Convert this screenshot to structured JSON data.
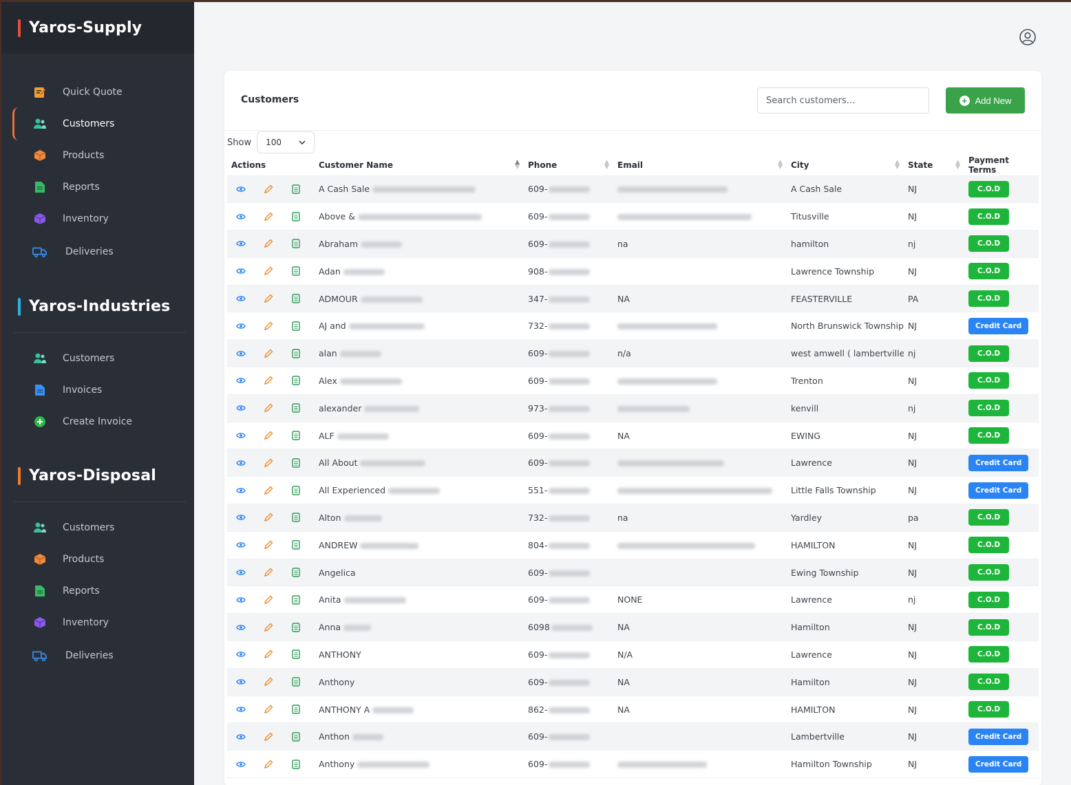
{
  "sidebar": {
    "sections": [
      {
        "title": "Yaros-Supply",
        "accent": "#e94e3d",
        "items": [
          {
            "label": "Quick Quote",
            "icon": "quick-quote-icon",
            "active": false
          },
          {
            "label": "Customers",
            "icon": "customers-icon",
            "active": true
          },
          {
            "label": "Products",
            "icon": "products-icon",
            "active": false
          },
          {
            "label": "Reports",
            "icon": "reports-icon",
            "active": false
          },
          {
            "label": "Inventory",
            "icon": "inventory-icon",
            "active": false
          },
          {
            "label": "Deliveries",
            "icon": "deliveries-icon",
            "active": false
          }
        ]
      },
      {
        "title": "Yaros-Industries",
        "accent": "#2bb3e0",
        "items": [
          {
            "label": "Customers",
            "icon": "customers-icon",
            "active": false
          },
          {
            "label": "Invoices",
            "icon": "invoices-icon",
            "active": false
          },
          {
            "label": "Create Invoice",
            "icon": "create-invoice-icon",
            "active": false
          }
        ]
      },
      {
        "title": "Yaros-Disposal",
        "accent": "#f07a2e",
        "items": [
          {
            "label": "Customers",
            "icon": "customers-icon",
            "active": false
          },
          {
            "label": "Products",
            "icon": "products-icon",
            "active": false
          },
          {
            "label": "Reports",
            "icon": "reports-icon",
            "active": false
          },
          {
            "label": "Inventory",
            "icon": "inventory-icon",
            "active": false
          },
          {
            "label": "Deliveries",
            "icon": "deliveries-icon",
            "active": false
          }
        ]
      }
    ]
  },
  "header": {
    "user_icon": "user-circle-icon"
  },
  "customers": {
    "title": "Customers",
    "search_placeholder": "Search customers...",
    "add_label": "Add New",
    "show_label": "Show",
    "show_value": "100",
    "columns": [
      "Actions",
      "Customer Name",
      "Phone",
      "Email",
      "City",
      "State",
      "Payment Terms"
    ],
    "rows": [
      {
        "name": "A Cash Sale",
        "phone": "609-",
        "email": "",
        "city": "A Cash Sale",
        "state": "NJ",
        "terms": "C.O.D"
      },
      {
        "name": "Above &",
        "phone": "609-",
        "email": "",
        "city": "Titusville",
        "state": "NJ",
        "terms": "C.O.D"
      },
      {
        "name": "Abraham",
        "phone": "609-",
        "email": "na",
        "city": "hamilton",
        "state": "nj",
        "terms": "C.O.D"
      },
      {
        "name": "Adan",
        "phone": "908-",
        "email": "",
        "city": "Lawrence Township",
        "state": "NJ",
        "terms": "C.O.D"
      },
      {
        "name": "ADMOUR",
        "phone": "347-",
        "email": "NA",
        "city": "FEASTERVILLE",
        "state": "PA",
        "terms": "C.O.D"
      },
      {
        "name": "AJ and",
        "phone": "732-",
        "email": "",
        "city": "North Brunswick Township",
        "state": "NJ",
        "terms": "Credit Card"
      },
      {
        "name": "alan",
        "phone": "609-",
        "email": "n/a",
        "city": "west amwell ( lambertville)",
        "state": "nj",
        "terms": "C.O.D"
      },
      {
        "name": "Alex",
        "phone": "609-",
        "email": "",
        "city": "Trenton",
        "state": "NJ",
        "terms": "C.O.D"
      },
      {
        "name": "alexander",
        "phone": "973-",
        "email": "",
        "city": "kenvill",
        "state": "nj",
        "terms": "C.O.D"
      },
      {
        "name": "ALF",
        "phone": "609-",
        "email": "NA",
        "city": "EWING",
        "state": "NJ",
        "terms": "C.O.D"
      },
      {
        "name": "All About",
        "phone": "609-",
        "email": "",
        "city": "Lawrence",
        "state": "NJ",
        "terms": "Credit Card"
      },
      {
        "name": "All Experienced",
        "phone": "551-",
        "email": "",
        "city": "Little Falls Township",
        "state": "NJ",
        "terms": "Credit Card"
      },
      {
        "name": "Alton",
        "phone": "732-",
        "email": "na",
        "city": "Yardley",
        "state": "pa",
        "terms": "C.O.D"
      },
      {
        "name": "ANDREW",
        "phone": "804-",
        "email": "",
        "city": "HAMILTON",
        "state": "NJ",
        "terms": "C.O.D"
      },
      {
        "name": "Angelica",
        "phone": "609-",
        "email": "",
        "city": "Ewing Township",
        "state": "NJ",
        "terms": "C.O.D"
      },
      {
        "name": "Anita",
        "phone": "609-",
        "email": "NONE",
        "city": "Lawrence",
        "state": "nj",
        "terms": "C.O.D"
      },
      {
        "name": "Anna",
        "phone": "6098",
        "email": "NA",
        "city": "Hamilton",
        "state": "NJ",
        "terms": "C.O.D"
      },
      {
        "name": "ANTHONY",
        "phone": "609-",
        "email": "N/A",
        "city": "Lawrence",
        "state": "NJ",
        "terms": "C.O.D"
      },
      {
        "name": "Anthony",
        "phone": "609-",
        "email": "NA",
        "city": "Hamilton",
        "state": "NJ",
        "terms": "C.O.D"
      },
      {
        "name": "ANTHONY A",
        "phone": "862-",
        "email": "NA",
        "city": "HAMILTON",
        "state": "NJ",
        "terms": "C.O.D"
      },
      {
        "name": "Anthon",
        "phone": "609-",
        "email": "",
        "city": "Lambertville",
        "state": "NJ",
        "terms": "Credit Card"
      },
      {
        "name": "Anthony",
        "phone": "609-",
        "email": "",
        "city": "Hamilton Township",
        "state": "NJ",
        "terms": "Credit Card"
      }
    ]
  },
  "colors": {
    "cod": "#1db63b",
    "credit_card": "#2a84f4",
    "add_new": "#3aa34a",
    "sidebar": "#2a2f37"
  }
}
